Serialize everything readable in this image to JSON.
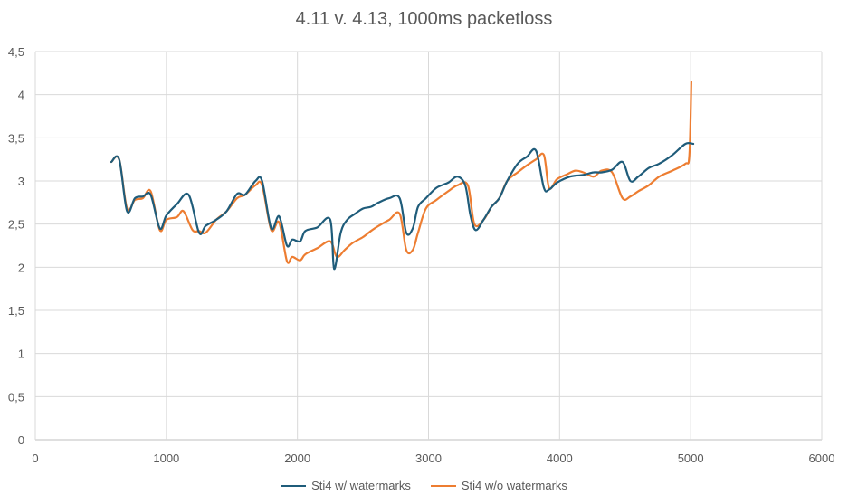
{
  "chart_data": {
    "type": "line",
    "title": "4.11 v. 4.13, 1000ms packetloss",
    "xlabel": "",
    "ylabel": "",
    "xlim": [
      0,
      6000
    ],
    "ylim": [
      0,
      4.5
    ],
    "x_ticks": [
      0,
      1000,
      2000,
      3000,
      4000,
      5000,
      6000
    ],
    "x_tick_labels": [
      "0",
      "1000",
      "2000",
      "3000",
      "4000",
      "5000",
      "6000"
    ],
    "y_ticks": [
      0,
      0.5,
      1,
      1.5,
      2,
      2.5,
      3,
      3.5,
      4,
      4.5
    ],
    "y_tick_labels": [
      "0",
      "0,5",
      "1",
      "1,5",
      "2",
      "2,5",
      "3",
      "3,5",
      "4",
      "4,5"
    ],
    "grid": true,
    "legend_position": "bottom",
    "series": [
      {
        "name": "Sti4 w/ watermarks",
        "color": "#1F5C7A",
        "x": [
          580,
          640,
          700,
          760,
          820,
          880,
          950,
          1000,
          1080,
          1170,
          1250,
          1300,
          1380,
          1460,
          1540,
          1600,
          1680,
          1730,
          1800,
          1860,
          1920,
          1960,
          2020,
          2060,
          2150,
          2250,
          2280,
          2330,
          2380,
          2440,
          2500,
          2560,
          2620,
          2700,
          2780,
          2830,
          2880,
          2920,
          2980,
          3060,
          3150,
          3220,
          3280,
          3320,
          3360,
          3420,
          3480,
          3540,
          3600,
          3680,
          3750,
          3820,
          3880,
          3920,
          3980,
          4080,
          4180,
          4260,
          4320,
          4400,
          4480,
          4540,
          4600,
          4680,
          4760,
          4860,
          4960,
          5020
        ],
        "y": [
          3.22,
          3.25,
          2.65,
          2.8,
          2.82,
          2.84,
          2.45,
          2.6,
          2.73,
          2.84,
          2.4,
          2.48,
          2.55,
          2.65,
          2.85,
          2.84,
          3.0,
          3.0,
          2.45,
          2.59,
          2.25,
          2.32,
          2.3,
          2.42,
          2.46,
          2.55,
          1.98,
          2.4,
          2.55,
          2.62,
          2.68,
          2.7,
          2.75,
          2.8,
          2.8,
          2.4,
          2.45,
          2.7,
          2.8,
          2.92,
          2.98,
          3.05,
          2.95,
          2.6,
          2.43,
          2.55,
          2.7,
          2.8,
          3.0,
          3.2,
          3.28,
          3.35,
          2.92,
          2.9,
          2.98,
          3.05,
          3.07,
          3.1,
          3.1,
          3.13,
          3.22,
          3.0,
          3.05,
          3.15,
          3.2,
          3.3,
          3.43,
          3.43
        ]
      },
      {
        "name": "Sti4 w/o watermarks",
        "color": "#ED7D31",
        "x": [
          580,
          640,
          700,
          760,
          820,
          880,
          950,
          1000,
          1080,
          1130,
          1200,
          1250,
          1300,
          1380,
          1460,
          1540,
          1600,
          1680,
          1730,
          1800,
          1860,
          1920,
          1960,
          2020,
          2060,
          2150,
          2250,
          2300,
          2360,
          2420,
          2500,
          2560,
          2620,
          2700,
          2780,
          2830,
          2880,
          2920,
          2980,
          3060,
          3150,
          3220,
          3300,
          3350,
          3420,
          3480,
          3540,
          3600,
          3680,
          3750,
          3820,
          3880,
          3920,
          3980,
          4060,
          4120,
          4180,
          4260,
          4320,
          4400,
          4480,
          4540,
          4600,
          4680,
          4760,
          4860,
          4960,
          4990,
          5005
        ],
        "y": [
          3.22,
          3.25,
          2.68,
          2.78,
          2.8,
          2.88,
          2.43,
          2.55,
          2.58,
          2.65,
          2.43,
          2.42,
          2.4,
          2.55,
          2.65,
          2.8,
          2.84,
          2.95,
          2.95,
          2.43,
          2.52,
          2.07,
          2.12,
          2.08,
          2.15,
          2.22,
          2.3,
          2.12,
          2.2,
          2.28,
          2.35,
          2.42,
          2.48,
          2.55,
          2.62,
          2.2,
          2.2,
          2.4,
          2.68,
          2.78,
          2.88,
          2.95,
          2.95,
          2.5,
          2.55,
          2.7,
          2.8,
          3.0,
          3.1,
          3.18,
          3.25,
          3.3,
          2.92,
          3.02,
          3.08,
          3.12,
          3.1,
          3.05,
          3.12,
          3.1,
          2.8,
          2.82,
          2.88,
          2.95,
          3.05,
          3.12,
          3.2,
          3.3,
          4.15
        ]
      }
    ]
  }
}
